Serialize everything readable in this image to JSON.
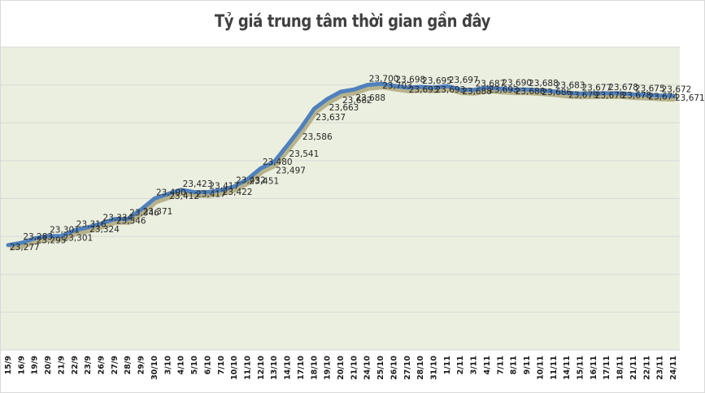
{
  "chart_data": {
    "type": "line",
    "title": "Tỷ giá trung tâm thời gian gần đây",
    "xlabel": "",
    "ylabel": "",
    "ylim": [
      23000,
      23800
    ],
    "grid": true,
    "legend": "none",
    "y_gridline_step": 100,
    "categories": [
      "15/9",
      "16/9",
      "19/9",
      "20/9",
      "21/9",
      "22/9",
      "23/9",
      "26/9",
      "27/9",
      "28/9",
      "29/9",
      "30/10",
      "3/10",
      "4/10",
      "5/10",
      "6/10",
      "7/10",
      "10/10",
      "11/10",
      "12/10",
      "13/10",
      "14/10",
      "17/10",
      "18/10",
      "19/10",
      "20/10",
      "21/10",
      "24/10",
      "25/10",
      "26/10",
      "27/10",
      "28/10",
      "31/10",
      "1/11",
      "2/11",
      "3/11",
      "4/11",
      "7/11",
      "8/11",
      "9/11",
      "10/11",
      "11/11",
      "14/11",
      "15/11",
      "16/11",
      "17/11",
      "18/11",
      "21/11",
      "22/11",
      "23/11",
      "24/11"
    ],
    "series": [
      {
        "name": "Tỷ giá trung tâm",
        "color": "#4f81bd",
        "values": [
          23277,
          23283,
          23295,
          23301,
          23301,
          23316,
          23324,
          23334,
          23346,
          23346,
          23371,
          23400,
          23412,
          23423,
          23417,
          23417,
          23422,
          23432,
          23451,
          23480,
          23497,
          23541,
          23586,
          23637,
          23663,
          23682,
          23688,
          23700,
          23703,
          23698,
          23693,
          23695,
          23693,
          23697,
          23688,
          23687,
          23693,
          23690,
          23688,
          23688,
          23686,
          23683,
          23679,
          23677,
          23678,
          23678,
          23678,
          23675,
          23674,
          23672,
          23671
        ]
      }
    ],
    "annotations": [
      "23,277",
      "23,283",
      "23,295",
      "23,301",
      "23,301",
      "23,316",
      "23,324",
      "23,334",
      "23,346",
      "23,346",
      "23,371",
      "23,400",
      "23,412",
      "23,423",
      "23,417",
      "23,422",
      "23,432",
      "23,451",
      "23,480",
      "23,497",
      "23,541",
      "23,586",
      "23,637",
      "23,663",
      "23,682",
      "23,688",
      "23,695",
      "23,697",
      "23,690",
      "23,693",
      "23,671"
    ]
  },
  "colors": {
    "plot_background": "#ebefdf",
    "line": "#4f81bd",
    "shadow": "#8a7f45",
    "gridline": "#d9d9d9",
    "title": "#404040"
  }
}
